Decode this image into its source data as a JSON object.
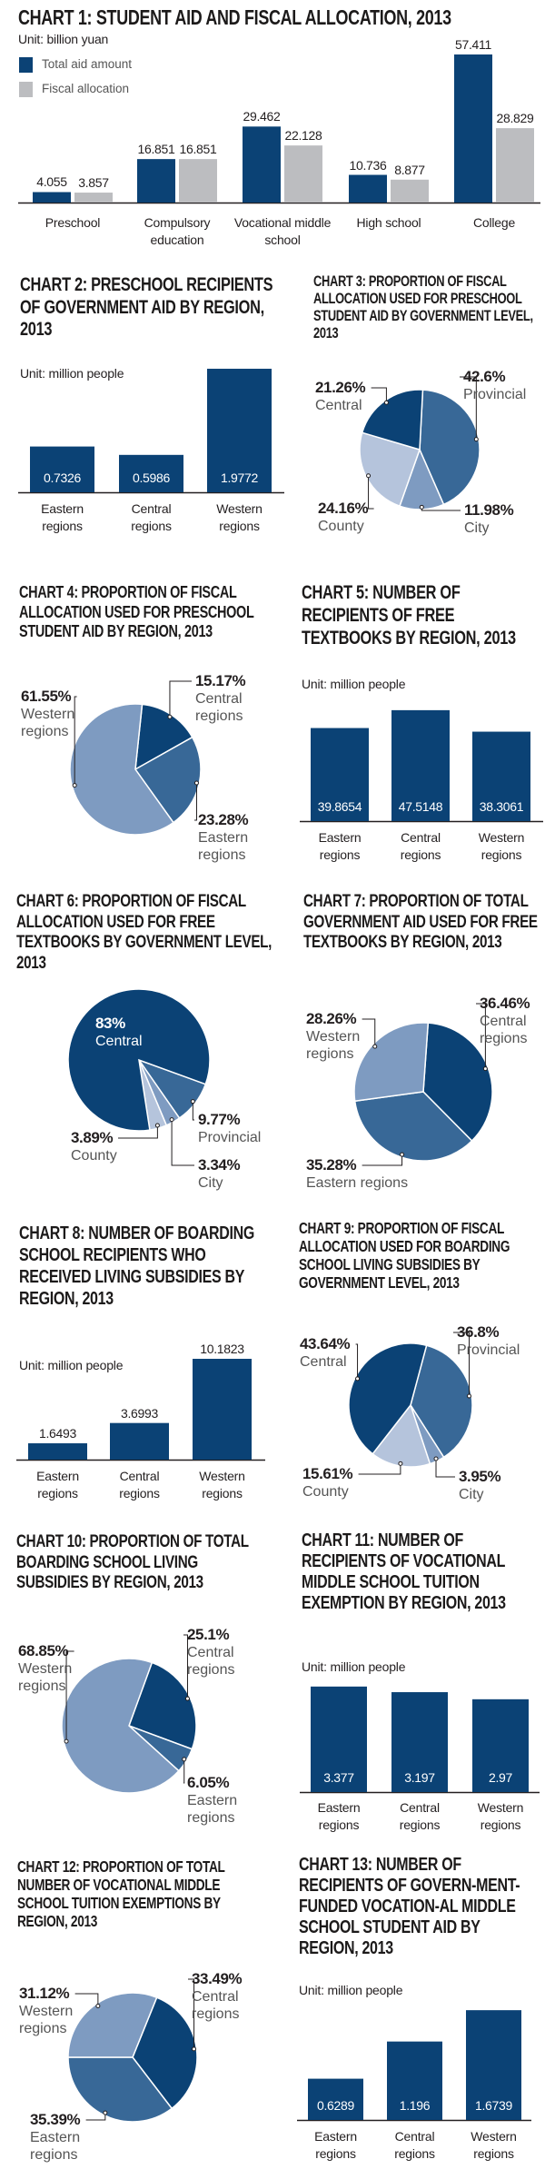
{
  "colors": {
    "dark": "#0b4275",
    "mid": "#386897",
    "lightmid": "#7e9bc1",
    "light": "#b5c4dc",
    "grey": "#bcbdc0"
  },
  "chart_data": [
    {
      "type": "bar",
      "title": "CHART 1: STUDENT AID AND FISCAL ALLOCATION, 2013",
      "unit": "Unit: billion yuan",
      "categories": [
        "Preschool",
        "Compulsory education",
        "Vocational middle school",
        "High school",
        "College"
      ],
      "series": [
        {
          "name": "Total aid amount",
          "values": [
            4.055,
            16.851,
            29.462,
            10.736,
            57.411
          ],
          "color": "#0b4275"
        },
        {
          "name": "Fiscal allocation",
          "values": [
            3.857,
            16.851,
            22.128,
            8.877,
            28.829
          ],
          "color": "#bcbdc0"
        }
      ],
      "legend": "top-left",
      "grid": false
    },
    {
      "type": "bar",
      "title": "CHART 2: PRESCHOOL RECIPIENTS OF GOVERNMENT AID BY REGION, 2013",
      "unit": "Unit: million people",
      "categories": [
        "Eastern regions",
        "Central regions",
        "Western regions"
      ],
      "values": [
        0.7326,
        0.5986,
        1.9772
      ],
      "grid": false
    },
    {
      "type": "pie",
      "title": "CHART 3: PROPORTION OF FISCAL ALLOCATION USED FOR PRESCHOOL STUDENT AID BY GOVERNMENT LEVEL, 2013",
      "slices": [
        {
          "label": "Provincial",
          "value": 42.6,
          "color": "#386897"
        },
        {
          "label": "City",
          "value": 11.98,
          "color": "#7e9bc1"
        },
        {
          "label": "County",
          "value": 24.16,
          "color": "#b5c4dc"
        },
        {
          "label": "Central",
          "value": 21.26,
          "color": "#0b4275"
        }
      ]
    },
    {
      "type": "pie",
      "title": "CHART 4: PROPORTION OF FISCAL ALLOCATION USED FOR PRESCHOOL STUDENT AID BY REGION, 2013",
      "slices": [
        {
          "label": "Central regions",
          "value": 15.17,
          "color": "#0b4275"
        },
        {
          "label": "Eastern regions",
          "value": 23.28,
          "color": "#386897"
        },
        {
          "label": "Western regions",
          "value": 61.55,
          "color": "#7e9bc1"
        }
      ]
    },
    {
      "type": "bar",
      "title": "CHART 5: NUMBER OF RECIPIENTS OF FREE TEXTBOOKS BY REGION, 2013",
      "unit": "Unit: million people",
      "categories": [
        "Eastern regions",
        "Central regions",
        "Western regions"
      ],
      "values": [
        39.8654,
        47.5148,
        38.3061
      ],
      "grid": false
    },
    {
      "type": "pie",
      "title": "CHART 6: PROPORTION OF FISCAL ALLOCATION USED FOR FREE TEXTBOOKS BY GOVERNMENT LEVEL, 2013",
      "slices": [
        {
          "label": "Provincial",
          "value": 9.77,
          "color": "#386897"
        },
        {
          "label": "City",
          "value": 3.34,
          "color": "#7e9bc1"
        },
        {
          "label": "County",
          "value": 3.89,
          "color": "#b5c4dc"
        },
        {
          "label": "Central",
          "value": 83,
          "color": "#0b4275"
        }
      ]
    },
    {
      "type": "pie",
      "title": "CHART 7: PROPORTION OF TOTAL GOVERNMENT AID USED FOR FREE TEXTBOOKS BY REGION, 2013",
      "slices": [
        {
          "label": "Central regions",
          "value": 36.46,
          "color": "#0b4275"
        },
        {
          "label": "Eastern regions",
          "value": 35.28,
          "color": "#386897"
        },
        {
          "label": "Western regions",
          "value": 28.26,
          "color": "#7e9bc1"
        }
      ]
    },
    {
      "type": "bar",
      "title": "CHART 8: NUMBER OF BOARDING SCHOOL RECIPIENTS WHO RECEIVED LIVING SUBSIDIES BY REGION, 2013",
      "unit": "Unit: million people",
      "categories": [
        "Eastern regions",
        "Central regions",
        "Western regions"
      ],
      "values": [
        1.6493,
        3.6993,
        10.1823
      ],
      "grid": false
    },
    {
      "type": "pie",
      "title": "CHART 9: PROPORTION OF FISCAL ALLOCATION USED FOR BOARDING SCHOOL LIVING SUBSIDIES BY GOVERNMENT LEVEL, 2013",
      "slices": [
        {
          "label": "Provincial",
          "value": 36.8,
          "color": "#386897"
        },
        {
          "label": "City",
          "value": 3.95,
          "color": "#7e9bc1"
        },
        {
          "label": "County",
          "value": 15.61,
          "color": "#b5c4dc"
        },
        {
          "label": "Central",
          "value": 43.64,
          "color": "#0b4275"
        }
      ]
    },
    {
      "type": "pie",
      "title": "CHART 10: PROPORTION OF TOTAL BOARDING SCHOOL LIVING SUBSIDIES BY REGION, 2013",
      "slices": [
        {
          "label": "Central regions",
          "value": 25.1,
          "color": "#0b4275"
        },
        {
          "label": "Eastern regions",
          "value": 6.05,
          "color": "#386897"
        },
        {
          "label": "Western regions",
          "value": 68.85,
          "color": "#7e9bc1"
        }
      ]
    },
    {
      "type": "bar",
      "title": "CHART 11: NUMBER OF RECIPIENTS OF VOCATIONAL MIDDLE SCHOOL TUITION EXEMPTION BY REGION, 2013",
      "unit": "Unit: million people",
      "categories": [
        "Eastern regions",
        "Central regions",
        "Western regions"
      ],
      "values": [
        3.377,
        3.197,
        2.97
      ],
      "grid": false
    },
    {
      "type": "pie",
      "title": "CHART 12: PROPORTION OF TOTAL NUMBER OF VOCATIONAL MIDDLE SCHOOL TUITION EXEMPTIONS BY REGION, 2013",
      "slices": [
        {
          "label": "Central regions",
          "value": 33.49,
          "color": "#0b4275"
        },
        {
          "label": "Eastern regions",
          "value": 35.39,
          "color": "#386897"
        },
        {
          "label": "Western regions",
          "value": 31.12,
          "color": "#7e9bc1"
        }
      ]
    },
    {
      "type": "bar",
      "title": "CHART 13: NUMBER OF RECIPIENTS OF GOVERN-MENT-FUNDED VOCATION-AL MIDDLE SCHOOL STUDENT AID BY REGION, 2013",
      "unit": "Unit: million people",
      "categories": [
        "Eastern regions",
        "Central regions",
        "Western regions"
      ],
      "values": [
        0.6289,
        1.196,
        1.6739
      ],
      "grid": false
    }
  ]
}
